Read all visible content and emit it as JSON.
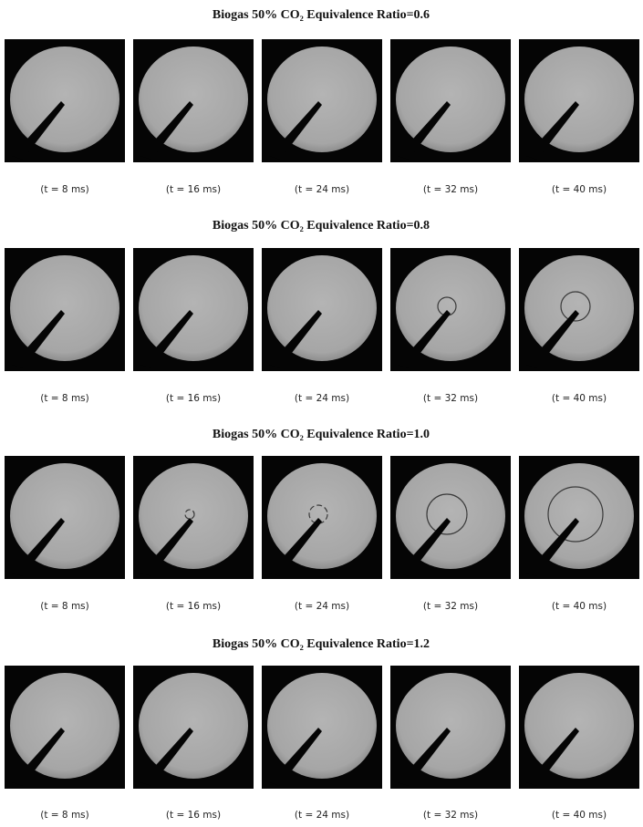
{
  "figure": {
    "panels": [
      {
        "title": "Biogas 50% CO₂ Equivalence Ratio=0.6",
        "captions": [
          "(t = 8 ms)",
          "(t = 16 ms)",
          "(t = 24 ms)",
          "(t = 32 ms)",
          "(t = 40 ms)"
        ]
      },
      {
        "title": "Biogas 50% CO₂ Equivalence Ratio=0.8",
        "captions": [
          "(t = 8 ms)",
          "(t = 16 ms)",
          "(t = 24 ms)",
          "(t = 32 ms)",
          "(t = 40 ms)"
        ]
      },
      {
        "title": "Biogas 50% CO₂ Equivalence Ratio=1.0",
        "captions": [
          "(t = 8 ms)",
          "(t = 16 ms)",
          "(t = 24 ms)",
          "(t = 32 ms)",
          "(t = 40 ms)"
        ]
      },
      {
        "title": "Biogas 50% CO₂ Equivalence Ratio=1.2",
        "captions": [
          "(t = 8 ms)",
          "(t = 16 ms)",
          "(t = 24 ms)",
          "(t = 32 ms)",
          "(t = 40 ms)"
        ]
      }
    ]
  }
}
